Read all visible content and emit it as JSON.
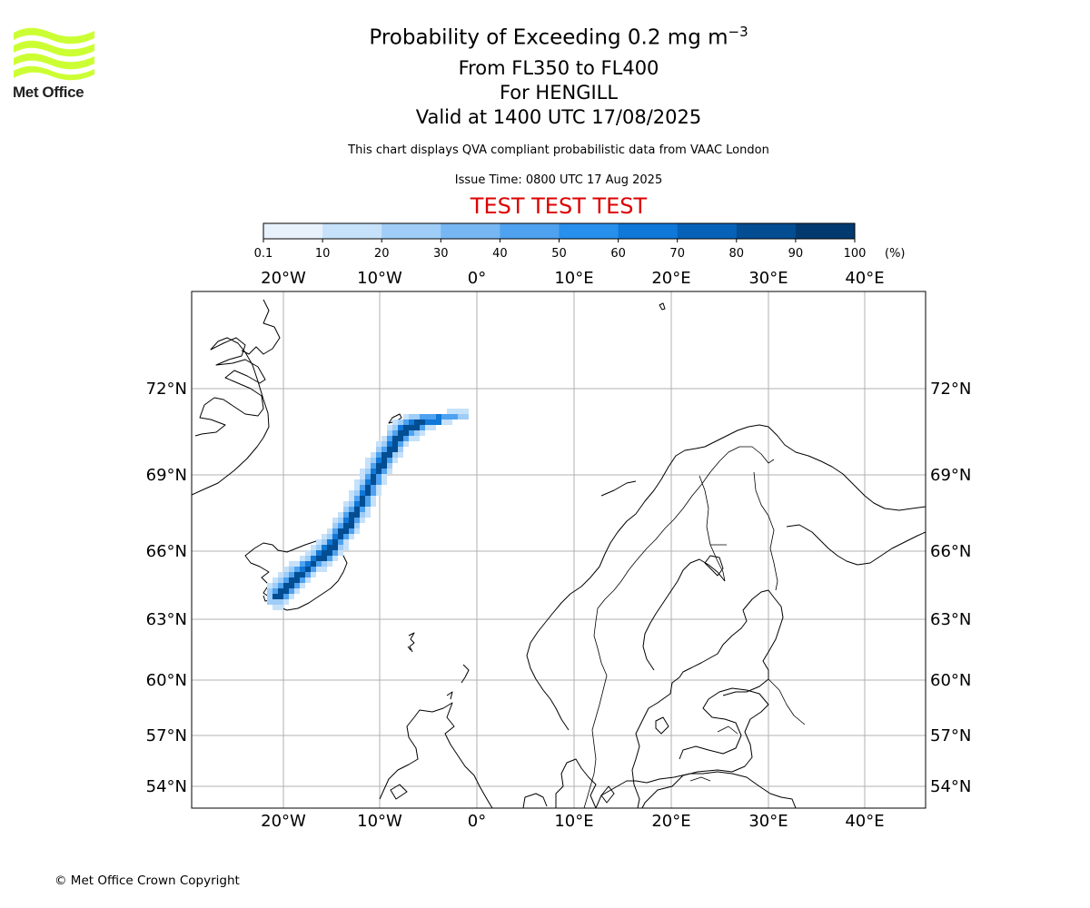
{
  "header": {
    "title_prefix": "Probability of Exceeding 0.2 mg m",
    "title_exponent": "−3",
    "level_range": "From FL350 to FL400",
    "volcano": "For HENGILL",
    "valid_time": "Valid at 1400 UTC 17/08/2025",
    "source_note": "This chart displays QVA compliant probabilistic data from VAAC London",
    "issue_time": "Issue Time: 0800 UTC 17 Aug 2025",
    "test_banner": "TEST TEST TEST",
    "test_color": "#dd0000"
  },
  "logo": {
    "text": "Met Office",
    "color": "#ccff33"
  },
  "colorbar": {
    "ticks": [
      "0.1",
      "10",
      "20",
      "30",
      "40",
      "50",
      "60",
      "70",
      "80",
      "90",
      "100"
    ],
    "unit": "(%)",
    "colors": [
      "#e8f2fd",
      "#c6e1fa",
      "#9fcdf7",
      "#76b7f3",
      "#4ea2f0",
      "#2690ec",
      "#0f78d8",
      "#0562b8",
      "#034d92",
      "#023a70",
      "#01264a"
    ]
  },
  "map": {
    "lon_labels": [
      "20°W",
      "10°W",
      "0°",
      "10°E",
      "20°E",
      "30°E",
      "40°E"
    ],
    "lat_labels": [
      "72°N",
      "69°N",
      "66°N",
      "63°N",
      "60°N",
      "57°N",
      "54°N"
    ],
    "grid_color": "#b0b0b0"
  },
  "footer": {
    "copyright": "© Met Office Crown Copyright"
  }
}
